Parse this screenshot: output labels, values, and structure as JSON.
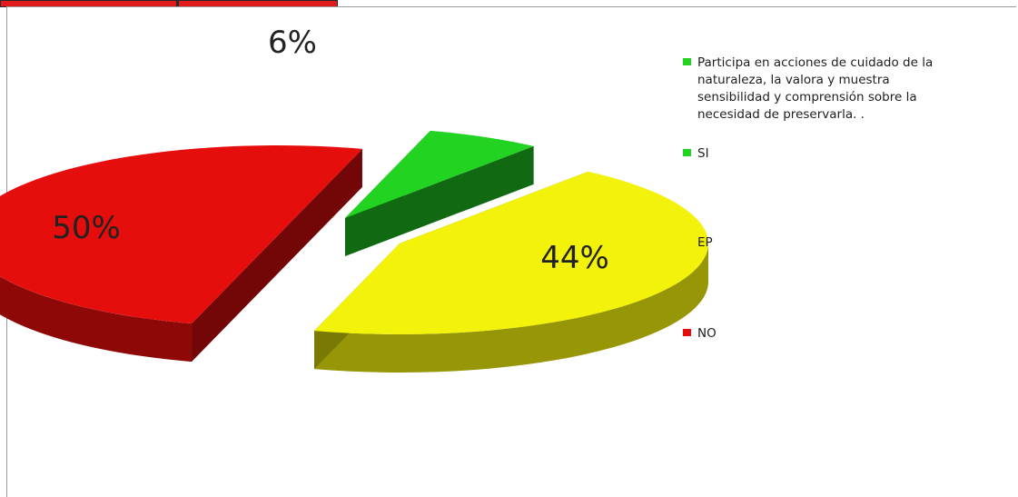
{
  "chart_data": {
    "type": "pie",
    "series_title": "Participa en acciones de cuidado de la naturaleza, la valora y muestra sensibilidad y comprensión sobre la necesidad de preservarla. .",
    "slices": [
      {
        "label": "SI",
        "value": 6,
        "display": "6%",
        "color": "#22d322"
      },
      {
        "label": "EP",
        "value": 44,
        "display": "44%",
        "color": "#f2f20a"
      },
      {
        "label": "NO",
        "value": 50,
        "display": "50%",
        "color": "#e60d0d"
      }
    ],
    "legend_title_lines": [
      "Participa en acciones de cuidado de la",
      "naturaleza, la valora y muestra",
      "sensibilidad y comprensión sobre la",
      "necesidad de preservarla. ."
    ],
    "style": "3d-exploded"
  }
}
